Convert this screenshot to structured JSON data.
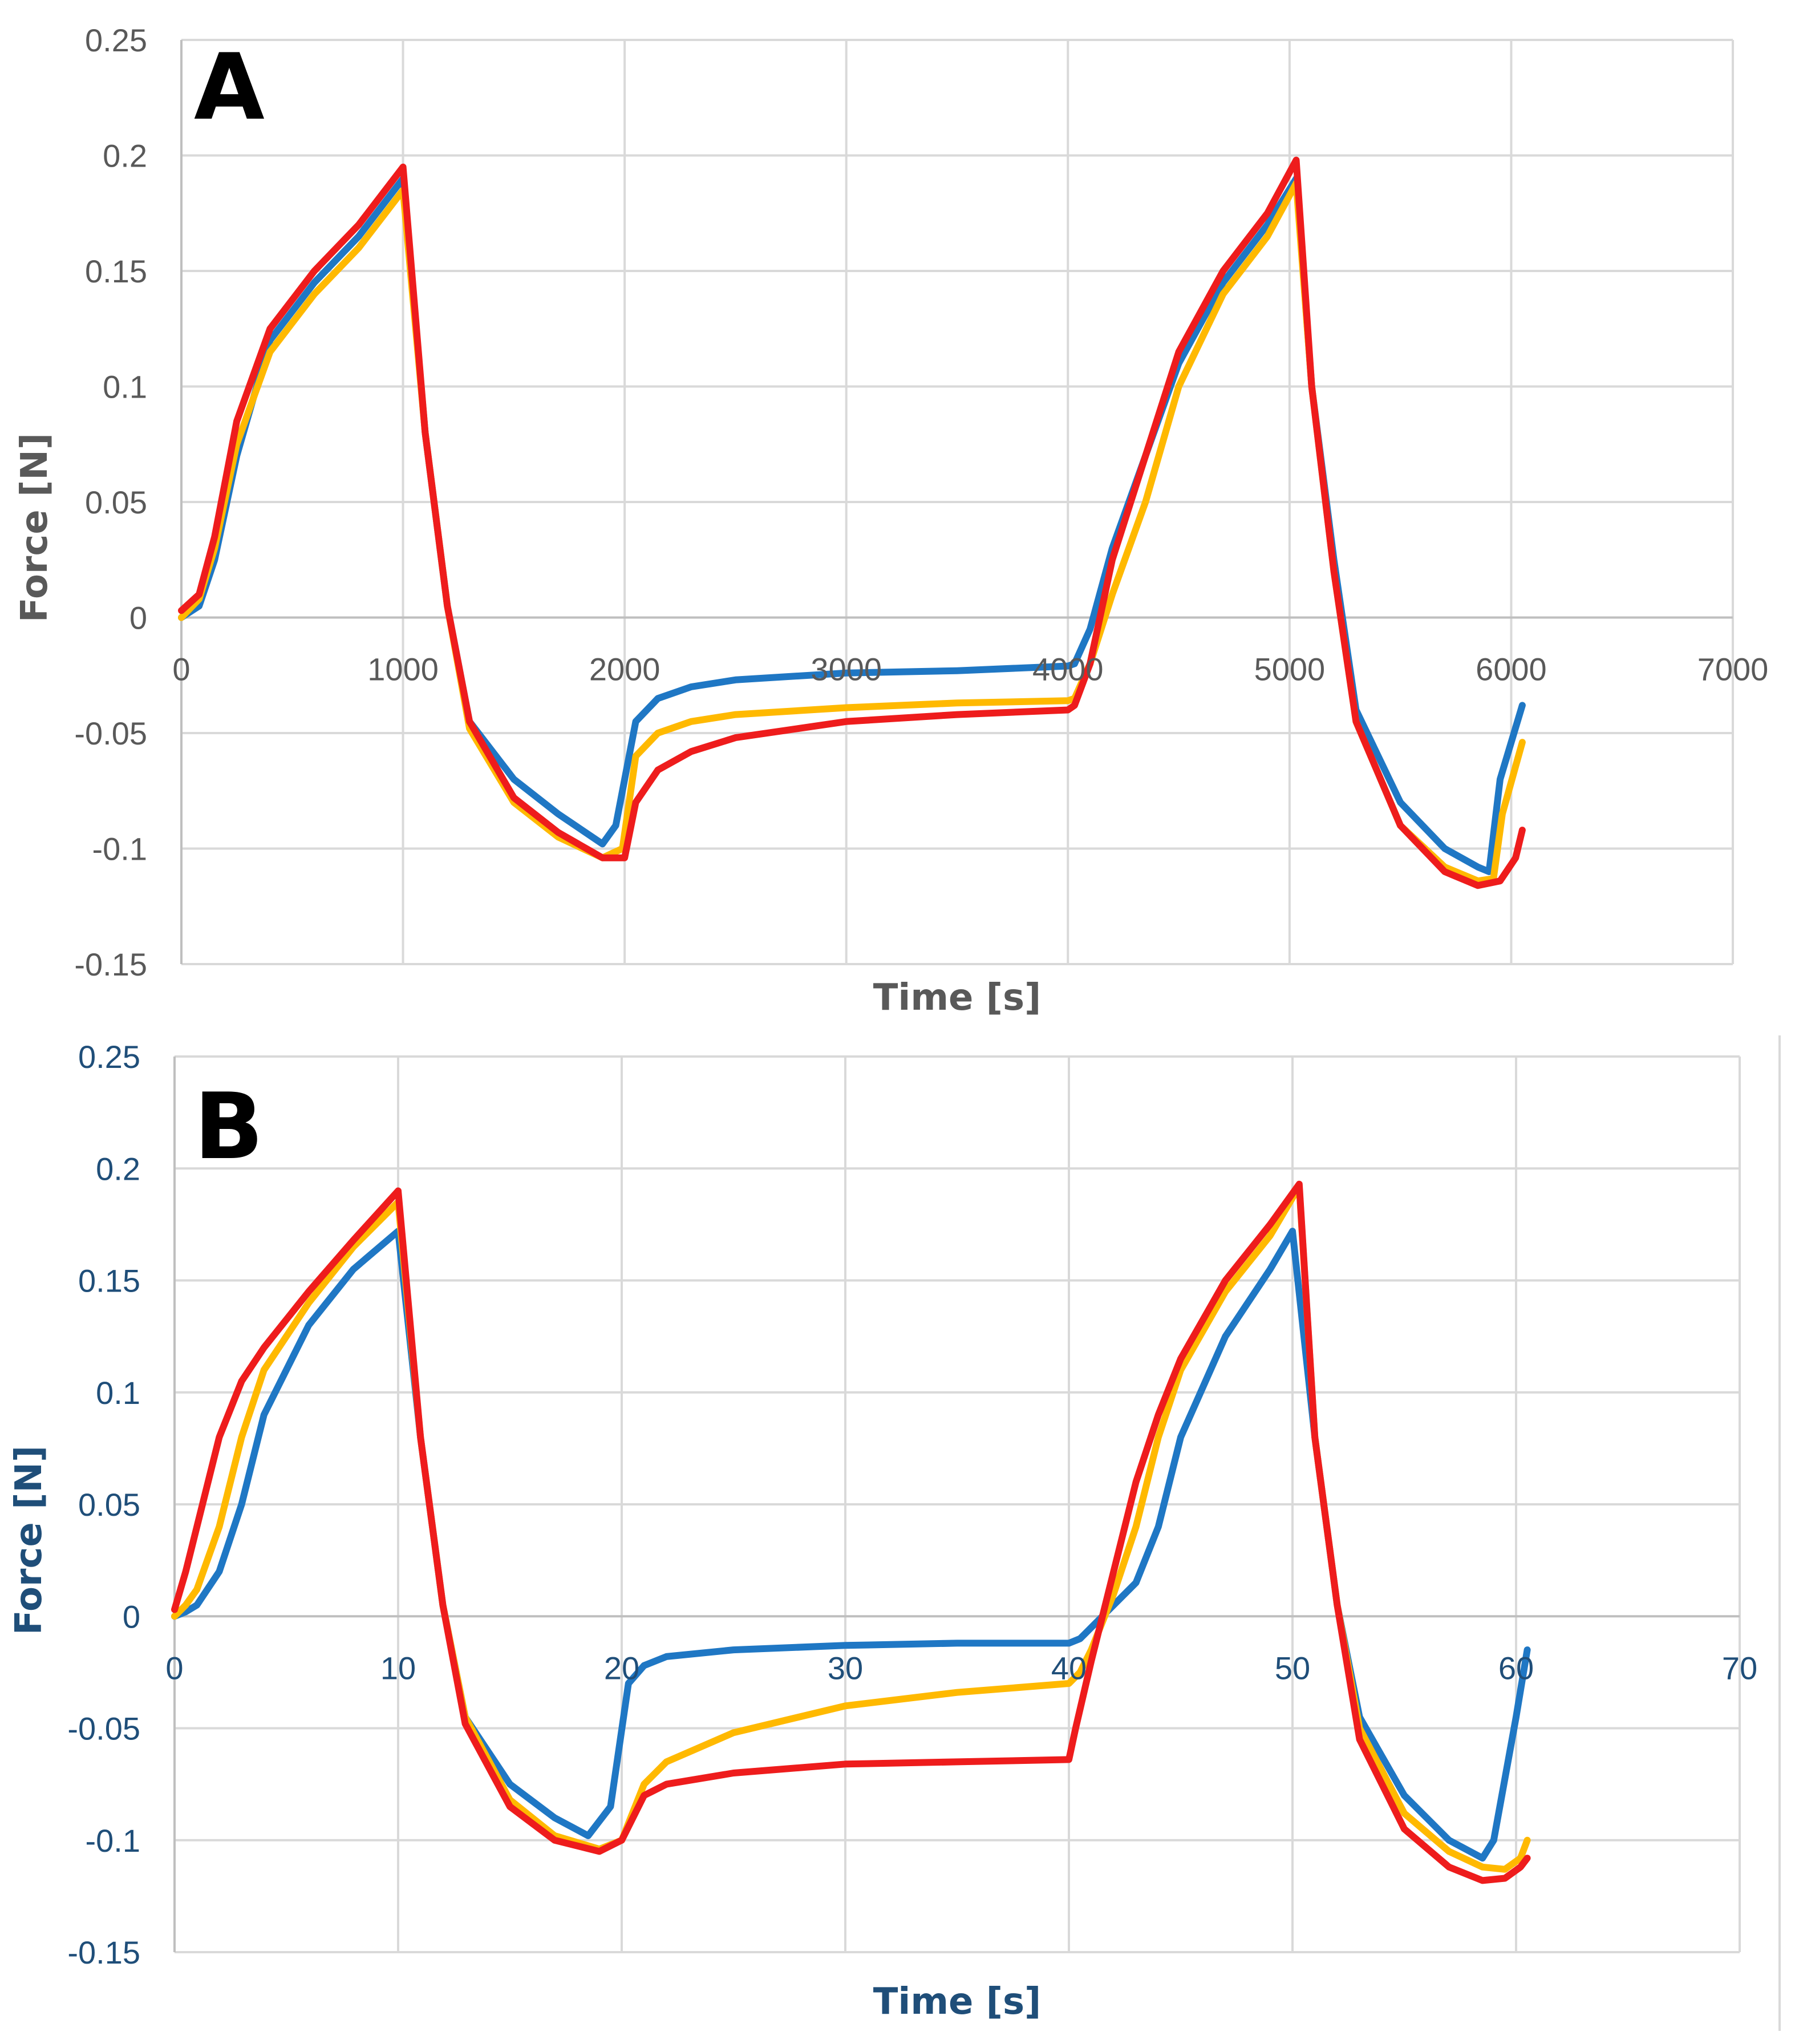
{
  "chart_data": [
    {
      "panel": "A",
      "type": "line",
      "xlabel": "Time [s]",
      "ylabel": "Force [N]",
      "xlim": [
        0,
        7000
      ],
      "ylim": [
        -0.15,
        0.25
      ],
      "xticks": [
        0,
        1000,
        2000,
        3000,
        4000,
        5000,
        6000,
        7000
      ],
      "yticks": [
        -0.15,
        -0.1,
        -0.05,
        0,
        0.05,
        0.1,
        0.15,
        0.2,
        0.25
      ],
      "xtick_labels": [
        "0",
        "1000",
        "2000",
        "3000",
        "4000",
        "5000",
        "6000",
        "7000"
      ],
      "ytick_labels": [
        "-0.15",
        "-0.1",
        "-0.05",
        "0",
        "0.05",
        "0.1",
        "0.15",
        "0.2",
        "0.25"
      ],
      "grid": true,
      "tick_color": "#595959",
      "title_color": "#595959",
      "series": [
        {
          "name": "blue",
          "color": "#1f77c4",
          "x": [
            0,
            80,
            150,
            250,
            400,
            600,
            800,
            1000,
            1100,
            1200,
            1300,
            1500,
            1700,
            1900,
            1960,
            2050,
            2150,
            2300,
            2500,
            3000,
            3500,
            4000,
            4030,
            4100,
            4200,
            4350,
            4500,
            4700,
            4900,
            5030,
            5100,
            5200,
            5300,
            5500,
            5700,
            5850,
            5900,
            5950,
            6050
          ],
          "y": [
            0,
            0.005,
            0.025,
            0.07,
            0.12,
            0.145,
            0.165,
            0.19,
            0.08,
            0.005,
            -0.045,
            -0.07,
            -0.085,
            -0.098,
            -0.09,
            -0.045,
            -0.035,
            -0.03,
            -0.027,
            -0.024,
            -0.023,
            -0.021,
            -0.02,
            -0.005,
            0.03,
            0.07,
            0.11,
            0.145,
            0.17,
            0.19,
            0.1,
            0.025,
            -0.04,
            -0.08,
            -0.1,
            -0.108,
            -0.11,
            -0.07,
            -0.038
          ]
        },
        {
          "name": "yellow",
          "color": "#ffb900",
          "x": [
            0,
            80,
            150,
            250,
            400,
            600,
            800,
            1000,
            1100,
            1200,
            1300,
            1500,
            1700,
            1900,
            1990,
            2050,
            2150,
            2300,
            2500,
            3000,
            3500,
            4000,
            4030,
            4100,
            4200,
            4350,
            4500,
            4700,
            4900,
            5030,
            5100,
            5200,
            5300,
            5500,
            5700,
            5850,
            5920,
            5960,
            6050
          ],
          "y": [
            0,
            0.008,
            0.03,
            0.075,
            0.115,
            0.14,
            0.16,
            0.185,
            0.08,
            0.005,
            -0.048,
            -0.08,
            -0.095,
            -0.104,
            -0.1,
            -0.06,
            -0.05,
            -0.045,
            -0.042,
            -0.039,
            -0.037,
            -0.036,
            -0.035,
            -0.02,
            0.01,
            0.05,
            0.1,
            0.14,
            0.165,
            0.188,
            0.1,
            0.02,
            -0.045,
            -0.09,
            -0.108,
            -0.114,
            -0.113,
            -0.085,
            -0.054
          ]
        },
        {
          "name": "red",
          "color": "#ee1c1c",
          "x": [
            0,
            80,
            150,
            250,
            400,
            600,
            800,
            1000,
            1100,
            1200,
            1300,
            1500,
            1700,
            1900,
            2000,
            2050,
            2150,
            2300,
            2500,
            3000,
            3500,
            4000,
            4030,
            4100,
            4200,
            4350,
            4500,
            4700,
            4900,
            5030,
            5100,
            5200,
            5300,
            5500,
            5700,
            5850,
            5950,
            6020,
            6050
          ],
          "y": [
            0.003,
            0.01,
            0.035,
            0.085,
            0.125,
            0.15,
            0.17,
            0.195,
            0.08,
            0.005,
            -0.045,
            -0.078,
            -0.093,
            -0.104,
            -0.104,
            -0.08,
            -0.066,
            -0.058,
            -0.052,
            -0.045,
            -0.042,
            -0.04,
            -0.038,
            -0.02,
            0.025,
            0.07,
            0.115,
            0.15,
            0.175,
            0.198,
            0.1,
            0.02,
            -0.045,
            -0.09,
            -0.11,
            -0.116,
            -0.114,
            -0.104,
            -0.092
          ]
        }
      ]
    },
    {
      "panel": "B",
      "type": "line",
      "xlabel": "Time [s]",
      "ylabel": "Force [N]",
      "xlim": [
        0,
        70
      ],
      "ylim": [
        -0.15,
        0.25
      ],
      "xticks": [
        0,
        10,
        20,
        30,
        40,
        50,
        60,
        70
      ],
      "yticks": [
        -0.15,
        -0.1,
        -0.05,
        0,
        0.05,
        0.1,
        0.15,
        0.2,
        0.25
      ],
      "xtick_labels": [
        "0",
        "10",
        "20",
        "30",
        "40",
        "50",
        "60",
        "70"
      ],
      "ytick_labels": [
        "-0.15",
        "-0.1",
        "-0.05",
        "0",
        "0.05",
        "0.1",
        "0.15",
        "0.2",
        "0.25"
      ],
      "grid": true,
      "tick_color": "#1f4e79",
      "title_color": "#1f4e79",
      "series": [
        {
          "name": "blue",
          "color": "#1f77c4",
          "x": [
            0,
            0.5,
            1,
            2,
            3,
            4,
            6,
            8,
            10,
            11,
            12,
            13,
            15,
            17,
            18.5,
            19.5,
            20.3,
            21,
            22,
            25,
            30,
            35,
            40,
            40.5,
            41,
            42,
            43,
            44,
            45,
            47,
            49,
            50,
            51,
            52,
            53,
            55,
            57,
            58.5,
            59,
            60,
            60.5
          ],
          "y": [
            0,
            0.002,
            0.005,
            0.02,
            0.05,
            0.09,
            0.13,
            0.155,
            0.172,
            0.08,
            0.005,
            -0.045,
            -0.075,
            -0.09,
            -0.098,
            -0.085,
            -0.03,
            -0.022,
            -0.018,
            -0.015,
            -0.013,
            -0.012,
            -0.012,
            -0.01,
            -0.005,
            0.005,
            0.015,
            0.04,
            0.08,
            0.125,
            0.155,
            0.172,
            0.08,
            0.005,
            -0.045,
            -0.08,
            -0.1,
            -0.108,
            -0.1,
            -0.045,
            -0.015
          ]
        },
        {
          "name": "yellow",
          "color": "#ffb900",
          "x": [
            0,
            0.5,
            1,
            2,
            3,
            4,
            6,
            8,
            10,
            11,
            12,
            13,
            15,
            17,
            19,
            20,
            21,
            22,
            25,
            30,
            35,
            40,
            40.5,
            41,
            42,
            43,
            44,
            45,
            47,
            49,
            50.3,
            51,
            52,
            53,
            55,
            57,
            58.5,
            59.5,
            60.2,
            60.5
          ],
          "y": [
            0,
            0.005,
            0.012,
            0.04,
            0.08,
            0.11,
            0.14,
            0.165,
            0.185,
            0.08,
            0.005,
            -0.045,
            -0.082,
            -0.098,
            -0.104,
            -0.1,
            -0.075,
            -0.065,
            -0.052,
            -0.04,
            -0.034,
            -0.03,
            -0.025,
            -0.015,
            0.01,
            0.04,
            0.08,
            0.11,
            0.145,
            0.17,
            0.192,
            0.08,
            0.005,
            -0.05,
            -0.088,
            -0.105,
            -0.112,
            -0.113,
            -0.108,
            -0.1
          ]
        },
        {
          "name": "red",
          "color": "#ee1c1c",
          "x": [
            0,
            0.5,
            1,
            2,
            3,
            4,
            6,
            8,
            10,
            11,
            12,
            13,
            15,
            17,
            19,
            20,
            21,
            22,
            25,
            30,
            35,
            40,
            40.3,
            41,
            42,
            43,
            44,
            45,
            47,
            49,
            50.3,
            51,
            52,
            53,
            55,
            57,
            58.5,
            59.5,
            60.2,
            60.5
          ],
          "y": [
            0.003,
            0.02,
            0.04,
            0.08,
            0.105,
            0.12,
            0.145,
            0.168,
            0.19,
            0.08,
            0.005,
            -0.048,
            -0.085,
            -0.1,
            -0.105,
            -0.1,
            -0.08,
            -0.075,
            -0.07,
            -0.066,
            -0.065,
            -0.064,
            -0.05,
            -0.02,
            0.02,
            0.06,
            0.09,
            0.115,
            0.15,
            0.175,
            0.193,
            0.08,
            0.005,
            -0.055,
            -0.095,
            -0.112,
            -0.118,
            -0.117,
            -0.112,
            -0.108
          ]
        }
      ]
    }
  ]
}
